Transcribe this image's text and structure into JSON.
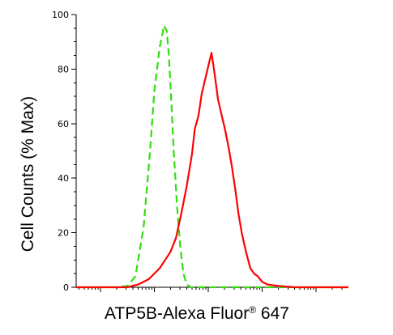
{
  "chart_data": {
    "type": "line",
    "title": "",
    "ylabel": "Cell Counts (% Max)",
    "xlabel": {
      "main": "ATP5B-Alexa Fluor",
      "superscript": "®",
      "suffix": " 647"
    },
    "xscale": "log",
    "xlim": [
      0.55,
      5.6
    ],
    "ylim": [
      0,
      100
    ],
    "y_ticks": [
      0,
      20,
      40,
      60,
      80,
      100
    ],
    "y_tick_labels": [
      "0",
      "20",
      "40",
      "60",
      "80",
      "100"
    ],
    "x_tick_labels_shown": false,
    "grid": false,
    "legend": "none",
    "series": [
      {
        "color": "#33dd11",
        "dash": "dashed",
        "x": [
          0.55,
          1.3,
          1.5,
          1.65,
          1.8,
          1.92,
          2.0,
          2.1,
          2.18,
          2.23,
          2.27,
          2.31,
          2.36,
          2.42,
          2.48,
          2.54,
          2.6,
          2.68,
          2.78,
          3.0,
          3.6,
          4.2,
          5.6
        ],
        "y": [
          0,
          0,
          0.5,
          4,
          22,
          50,
          72,
          88,
          96,
          94,
          85,
          70,
          50,
          30,
          15,
          5,
          1,
          0,
          0,
          0,
          0,
          0,
          0
        ]
      },
      {
        "color": "#ff0000",
        "dash": "solid",
        "x": [
          0.55,
          1.5,
          1.7,
          1.9,
          2.0,
          2.1,
          2.2,
          2.3,
          2.4,
          2.5,
          2.6,
          2.7,
          2.75,
          2.82,
          2.88,
          2.94,
          3.0,
          3.06,
          3.12,
          3.18,
          3.25,
          3.31,
          3.38,
          3.44,
          3.5,
          3.56,
          3.62,
          3.7,
          3.78,
          3.85,
          3.92,
          4.0,
          4.1,
          4.3,
          4.6,
          5.0,
          5.6
        ],
        "y": [
          0,
          0,
          1,
          3,
          5,
          7,
          10,
          13,
          18,
          27,
          37,
          49,
          58,
          63,
          71,
          76,
          81,
          86,
          78,
          69,
          63,
          58,
          51,
          44,
          36,
          27,
          20,
          13,
          7,
          5,
          4,
          2,
          1,
          0.5,
          0,
          0,
          0
        ]
      }
    ]
  }
}
